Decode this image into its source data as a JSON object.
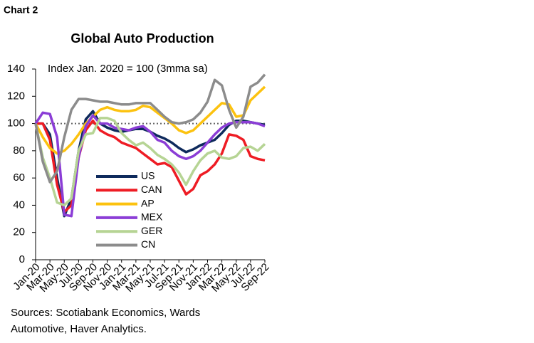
{
  "chart_label": "Chart 2",
  "chart_data": {
    "type": "line",
    "title": "Global Auto Production",
    "subtitle": "Index Jan. 2020 = 100 (3mma sa)",
    "categories": [
      "Jan-20",
      null,
      "Mar-20",
      null,
      "May-20",
      null,
      "Jul-20",
      null,
      "Sep-20",
      null,
      "Nov-20",
      null,
      "Jan-21",
      null,
      "Mar-21",
      null,
      "May-21",
      null,
      "Jul-21",
      null,
      "Sep-21",
      null,
      "Nov-21",
      null,
      "Jan-22",
      null,
      "Mar-22",
      null,
      "May-22",
      null,
      "Jul-22",
      null,
      "Sep-22"
    ],
    "series": [
      {
        "name": "US",
        "color": "#0e2a5c",
        "values": [
          100,
          100,
          92,
          60,
          32,
          45,
          80,
          103,
          109,
          100,
          97,
          95,
          94,
          95,
          96,
          96,
          94,
          91,
          89,
          86,
          82,
          79,
          81,
          84,
          86,
          88,
          93,
          99,
          102,
          102,
          101,
          100,
          99
        ]
      },
      {
        "name": "CAN",
        "color": "#ee1c24",
        "values": [
          100,
          100,
          88,
          55,
          35,
          40,
          75,
          95,
          102,
          95,
          92,
          90,
          86,
          84,
          82,
          78,
          74,
          70,
          71,
          68,
          58,
          48,
          52,
          62,
          65,
          70,
          78,
          92,
          91,
          88,
          76,
          74,
          73
        ]
      },
      {
        "name": "AP",
        "color": "#fcc20f",
        "values": [
          100,
          90,
          82,
          78,
          80,
          85,
          92,
          100,
          105,
          110,
          112,
          110,
          109,
          109,
          110,
          113,
          112,
          108,
          104,
          100,
          95,
          93,
          95,
          100,
          105,
          110,
          115,
          114,
          105,
          106,
          117,
          122,
          127
        ]
      },
      {
        "name": "MEX",
        "color": "#8b3dd6",
        "values": [
          100,
          108,
          107,
          90,
          33,
          32,
          75,
          98,
          106,
          100,
          100,
          97,
          96,
          95,
          97,
          98,
          94,
          88,
          86,
          80,
          76,
          74,
          76,
          80,
          86,
          92,
          97,
          100,
          101,
          101,
          101,
          100,
          98
        ]
      },
      {
        "name": "GER",
        "color": "#b6d494",
        "values": [
          100,
          75,
          60,
          42,
          40,
          45,
          80,
          92,
          93,
          104,
          104,
          102,
          93,
          88,
          84,
          86,
          82,
          77,
          74,
          70,
          64,
          55,
          65,
          73,
          78,
          80,
          75,
          74,
          76,
          82,
          83,
          80,
          85
        ]
      },
      {
        "name": "CN",
        "color": "#8c8c8c",
        "values": [
          100,
          72,
          57,
          65,
          90,
          110,
          118,
          118,
          117,
          116,
          116,
          115,
          114,
          114,
          115,
          115,
          115,
          110,
          105,
          101,
          100,
          101,
          103,
          108,
          116,
          132,
          128,
          110,
          97,
          105,
          127,
          130,
          136
        ]
      }
    ],
    "ylim": [
      0,
      140
    ],
    "yticks": [
      0,
      20,
      40,
      60,
      80,
      100,
      120,
      140
    ],
    "reference_line": 100,
    "legend": "lower left",
    "grid": false
  },
  "source_lines": [
    "Sources: Scotiabank Economics, Wards",
    "Automotive, Haver Analytics."
  ]
}
